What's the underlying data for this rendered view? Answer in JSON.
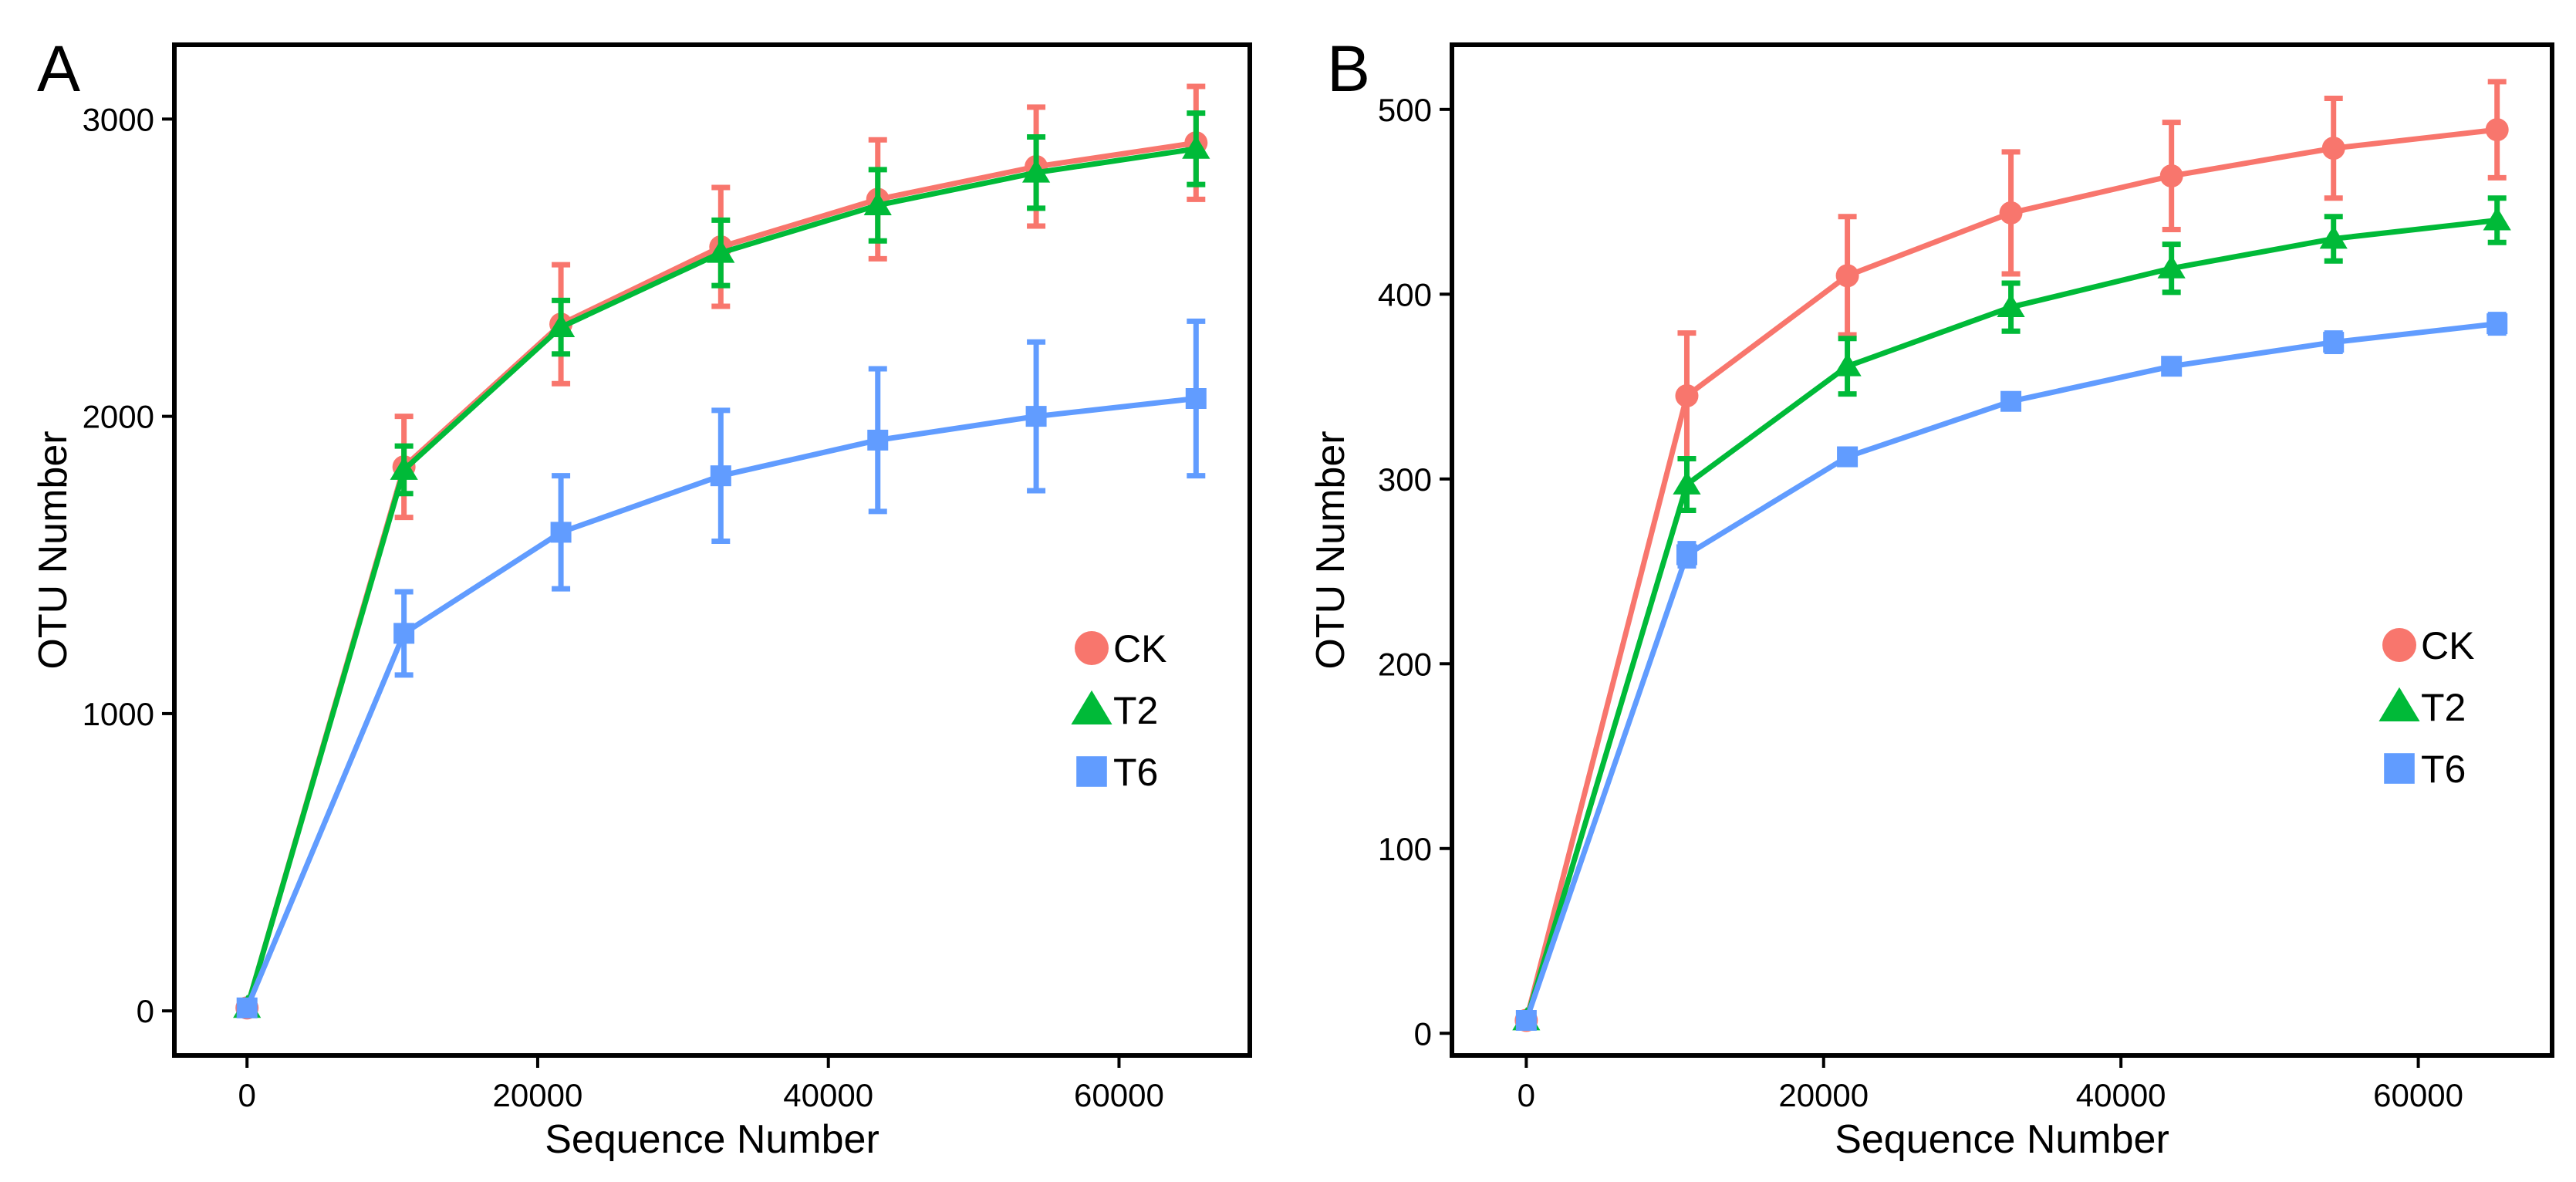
{
  "chart_data": [
    {
      "type": "line",
      "panel_label": "A",
      "xlabel": "Sequence Number",
      "ylabel": "OTU Number",
      "xlim": [
        -5000,
        69000
      ],
      "ylim": [
        -150,
        3250
      ],
      "x_ticks": [
        0,
        20000,
        40000,
        60000
      ],
      "y_ticks": [
        0,
        1000,
        2000,
        3000
      ],
      "grid": false,
      "legend_position": "lower-right",
      "x": [
        0,
        10800,
        21600,
        32600,
        43400,
        54300,
        65300
      ],
      "series": [
        {
          "name": "CK",
          "marker": "circle",
          "color": "#F8766D",
          "values": [
            10,
            1830,
            2310,
            2570,
            2730,
            2840,
            2920
          ],
          "errors": [
            0,
            170,
            200,
            200,
            200,
            200,
            190
          ]
        },
        {
          "name": "T2",
          "marker": "triangle",
          "color": "#00BA38",
          "values": [
            10,
            1820,
            2300,
            2550,
            2710,
            2820,
            2900
          ],
          "errors": [
            0,
            80,
            90,
            110,
            120,
            120,
            120
          ]
        },
        {
          "name": "T6",
          "marker": "square",
          "color": "#619CFF",
          "values": [
            10,
            1270,
            1610,
            1800,
            1920,
            2000,
            2060
          ],
          "errors": [
            0,
            140,
            190,
            220,
            240,
            250,
            260
          ]
        }
      ]
    },
    {
      "type": "line",
      "panel_label": "B",
      "xlabel": "Sequence Number",
      "ylabel": "OTU Number",
      "xlim": [
        -5000,
        69000
      ],
      "ylim": [
        -12,
        535
      ],
      "x_ticks": [
        0,
        20000,
        40000,
        60000
      ],
      "y_ticks": [
        0,
        100,
        200,
        300,
        400,
        500
      ],
      "grid": false,
      "legend_position": "lower-right",
      "x": [
        0,
        10800,
        21600,
        32600,
        43400,
        54300,
        65300
      ],
      "series": [
        {
          "name": "CK",
          "marker": "circle",
          "color": "#F8766D",
          "values": [
            7,
            345,
            410,
            444,
            464,
            479,
            489
          ],
          "errors": [
            0,
            34,
            32,
            33,
            29,
            27,
            26
          ]
        },
        {
          "name": "T2",
          "marker": "triangle",
          "color": "#00BA38",
          "values": [
            7,
            297,
            361,
            393,
            414,
            430,
            440
          ],
          "errors": [
            0,
            14,
            15,
            13,
            13,
            12,
            12
          ]
        },
        {
          "name": "T6",
          "marker": "square",
          "color": "#619CFF",
          "values": [
            7,
            259,
            312,
            342,
            361,
            374,
            384
          ],
          "errors": [
            0,
            6,
            4,
            4,
            4,
            5,
            5
          ]
        }
      ]
    }
  ]
}
